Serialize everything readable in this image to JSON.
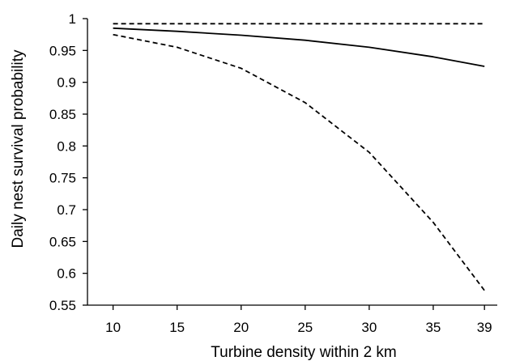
{
  "chart_data": {
    "type": "line",
    "title": "",
    "xlabel": "Turbine density within 2 km",
    "ylabel": "Daily nest survival probability",
    "x_ticks": [
      10,
      15,
      20,
      25,
      30,
      35,
      39
    ],
    "y_ticks": [
      0.55,
      0.6,
      0.65,
      0.7,
      0.75,
      0.8,
      0.85,
      0.9,
      0.95,
      1
    ],
    "y_tick_labels": [
      "0.55",
      "0.6",
      "0.65",
      "0.7",
      "0.75",
      "0.8",
      "0.85",
      "0.9",
      "0.95",
      "1"
    ],
    "xlim": [
      8,
      40
    ],
    "ylim": [
      0.55,
      1.0
    ],
    "grid": false,
    "legend": "none",
    "series": [
      {
        "style": "solid",
        "x": [
          10,
          15,
          20,
          25,
          30,
          35,
          39
        ],
        "y": [
          0.985,
          0.98,
          0.974,
          0.966,
          0.955,
          0.94,
          0.925
        ]
      },
      {
        "style": "dashed",
        "x": [
          10,
          39
        ],
        "y": [
          0.992,
          0.992
        ]
      },
      {
        "style": "dashed",
        "x": [
          10,
          15,
          20,
          25,
          30,
          35,
          39
        ],
        "y": [
          0.975,
          0.955,
          0.922,
          0.868,
          0.79,
          0.68,
          0.573
        ]
      }
    ]
  }
}
